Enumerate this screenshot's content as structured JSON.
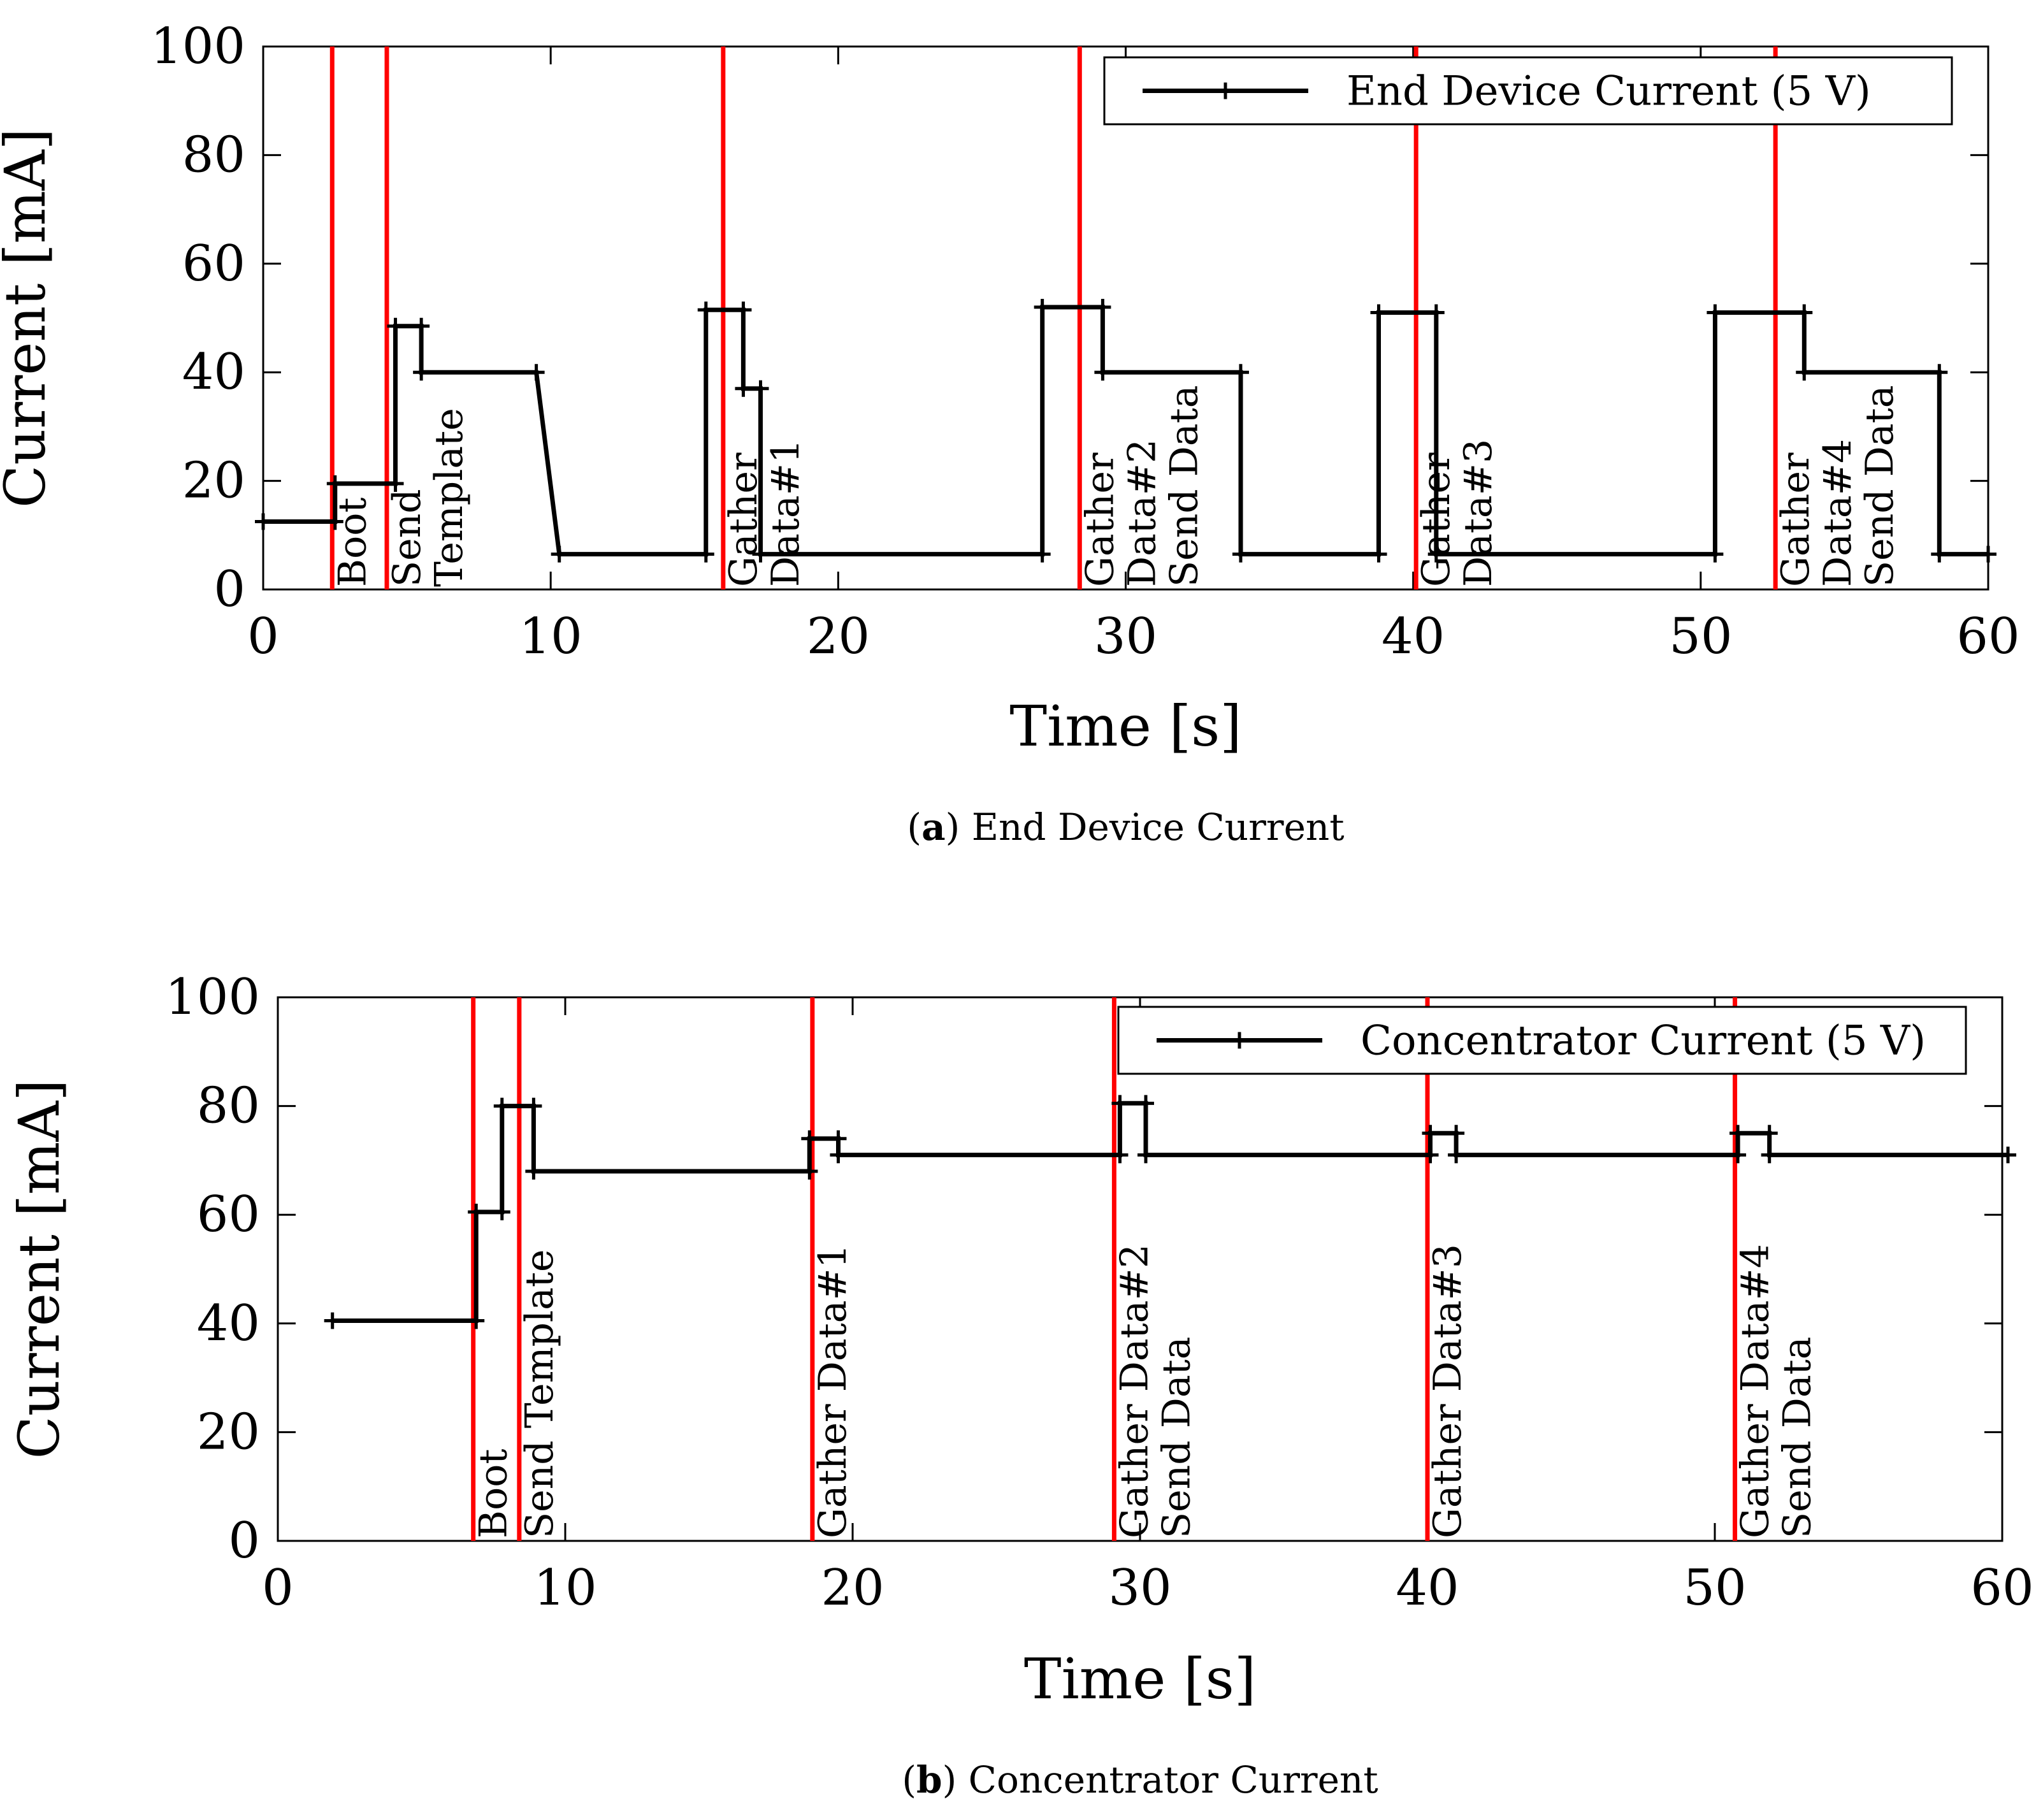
{
  "chart_data": [
    {
      "type": "line",
      "caption_letter": "a",
      "caption_text": "End Device Current",
      "xlabel": "Time [s]",
      "ylabel": "Current [mA]",
      "xlim": [
        0,
        60
      ],
      "ylim": [
        0,
        100
      ],
      "xticks": [
        "0",
        "10",
        "20",
        "30",
        "40",
        "50",
        "60"
      ],
      "yticks": [
        "0",
        "20",
        "40",
        "60",
        "80",
        "100"
      ],
      "legend_position": "top-right",
      "series": [
        {
          "name": "End Device Current (5 V)",
          "color": "#000000",
          "points": [
            [
              0,
              12.5
            ],
            [
              2.5,
              12.5
            ],
            [
              2.5,
              19.5
            ],
            [
              4.6,
              19.5
            ],
            [
              4.6,
              48.5
            ],
            [
              5.5,
              48.5
            ],
            [
              5.5,
              40
            ],
            [
              9.5,
              40
            ],
            [
              10.3,
              6.5
            ],
            [
              15.4,
              6.5
            ],
            [
              15.4,
              51.5
            ],
            [
              16.7,
              51.5
            ],
            [
              16.7,
              37
            ],
            [
              17.3,
              37
            ],
            [
              17.3,
              6.5
            ],
            [
              27.1,
              6.5
            ],
            [
              27.1,
              52
            ],
            [
              29.2,
              52
            ],
            [
              29.2,
              40
            ],
            [
              34,
              40
            ],
            [
              34,
              6.5
            ],
            [
              38.8,
              6.5
            ],
            [
              38.8,
              51
            ],
            [
              40.8,
              51
            ],
            [
              40.8,
              6.5
            ],
            [
              50.5,
              6.5
            ],
            [
              50.5,
              51
            ],
            [
              53.6,
              51
            ],
            [
              53.6,
              40
            ],
            [
              58.3,
              40
            ],
            [
              58.3,
              6.5
            ],
            [
              60,
              6.5
            ]
          ],
          "markers": [
            [
              0,
              12.5
            ],
            [
              2.5,
              12.5
            ],
            [
              2.5,
              19.5
            ],
            [
              4.6,
              19.5
            ],
            [
              4.6,
              48.5
            ],
            [
              5.5,
              48.5
            ],
            [
              5.5,
              40
            ],
            [
              9.5,
              40
            ],
            [
              10.3,
              6.5
            ],
            [
              15.4,
              6.5
            ],
            [
              15.4,
              51.5
            ],
            [
              16.7,
              51.5
            ],
            [
              16.7,
              37
            ],
            [
              17.3,
              37
            ],
            [
              17.3,
              6.5
            ],
            [
              27.1,
              6.5
            ],
            [
              27.1,
              52
            ],
            [
              29.2,
              52
            ],
            [
              29.2,
              40
            ],
            [
              34,
              40
            ],
            [
              34,
              6.5
            ],
            [
              38.8,
              6.5
            ],
            [
              38.8,
              51
            ],
            [
              40.8,
              51
            ],
            [
              40.8,
              6.5
            ],
            [
              50.5,
              6.5
            ],
            [
              50.5,
              51
            ],
            [
              53.6,
              51
            ],
            [
              53.6,
              40
            ],
            [
              58.3,
              40
            ],
            [
              58.3,
              6.5
            ],
            [
              60,
              6.5
            ]
          ]
        }
      ],
      "event_lines": [
        {
          "x": 2.4,
          "color": "#ff0000",
          "label_top_y": 20,
          "labels": [
            "Boot"
          ]
        },
        {
          "x": 4.3,
          "color": "#ff0000",
          "label_top_y": 40,
          "labels": [
            "Send",
            "Template"
          ]
        },
        {
          "x": 16.0,
          "color": "#ff0000",
          "label_top_y": 72,
          "labels": [
            "Gather",
            "Data#1"
          ]
        },
        {
          "x": 28.4,
          "color": "#ff0000",
          "label_top_y": 27,
          "labels": [
            "Gather",
            "Data#2",
            "Send Data"
          ]
        },
        {
          "x": 40.1,
          "color": "#ff0000",
          "label_top_y": 46,
          "labels": [
            "Gather",
            "Data#3"
          ]
        },
        {
          "x": 52.6,
          "color": "#ff0000",
          "label_top_y": 27,
          "labels": [
            "Gather",
            "Data#4",
            "Send Data"
          ]
        }
      ]
    },
    {
      "type": "line",
      "caption_letter": "b",
      "caption_text": "Concentrator Current",
      "xlabel": "Time [s]",
      "ylabel": "Current [mA]",
      "xlim": [
        0,
        60
      ],
      "ylim": [
        0,
        100
      ],
      "xticks": [
        "0",
        "10",
        "20",
        "30",
        "40",
        "50",
        "60"
      ],
      "yticks": [
        "0",
        "20",
        "40",
        "60",
        "80",
        "100"
      ],
      "legend_position": "top-right",
      "series": [
        {
          "name": "Concentrator Current (5 V)",
          "color": "#000000",
          "points": [
            [
              1.9,
              40.5
            ],
            [
              6.9,
              40.5
            ],
            [
              6.9,
              60.5
            ],
            [
              7.8,
              60.5
            ],
            [
              7.8,
              80
            ],
            [
              8.9,
              80
            ],
            [
              8.9,
              68
            ],
            [
              18.5,
              68
            ],
            [
              18.5,
              74
            ],
            [
              19.5,
              74
            ],
            [
              19.5,
              71
            ],
            [
              29.3,
              71
            ],
            [
              29.3,
              80.5
            ],
            [
              30.2,
              80.5
            ],
            [
              30.2,
              71
            ],
            [
              40.1,
              71
            ],
            [
              40.1,
              75
            ],
            [
              41.0,
              75
            ],
            [
              41.0,
              71
            ],
            [
              50.8,
              71
            ],
            [
              50.8,
              75
            ],
            [
              51.9,
              75
            ],
            [
              51.9,
              71
            ],
            [
              60.2,
              71
            ]
          ],
          "markers": [
            [
              1.9,
              40.5
            ],
            [
              6.9,
              40.5
            ],
            [
              6.9,
              60.5
            ],
            [
              7.8,
              60.5
            ],
            [
              7.8,
              80
            ],
            [
              8.9,
              80
            ],
            [
              8.9,
              68
            ],
            [
              18.5,
              68
            ],
            [
              18.5,
              74
            ],
            [
              19.5,
              74
            ],
            [
              19.5,
              71
            ],
            [
              29.3,
              71
            ],
            [
              29.3,
              80.5
            ],
            [
              30.2,
              80.5
            ],
            [
              30.2,
              71
            ],
            [
              40.1,
              71
            ],
            [
              40.1,
              75
            ],
            [
              41.0,
              75
            ],
            [
              41.0,
              71
            ],
            [
              50.8,
              71
            ],
            [
              50.8,
              75
            ],
            [
              51.9,
              75
            ],
            [
              51.9,
              71
            ],
            [
              60.2,
              71
            ]
          ]
        }
      ],
      "event_lines": [
        {
          "x": 6.8,
          "color": "#ff0000",
          "label_top_y": 19,
          "labels": [
            "Boot"
          ]
        },
        {
          "x": 8.4,
          "color": "#ff0000",
          "label_top_y": 60,
          "labels": [
            "Send Template"
          ]
        },
        {
          "x": 18.6,
          "color": "#ff0000",
          "label_top_y": 60,
          "labels": [
            "Gather Data#1"
          ]
        },
        {
          "x": 29.1,
          "color": "#ff0000",
          "label_top_y": 60,
          "labels": [
            "Gather Data#2",
            "Send Data"
          ]
        },
        {
          "x": 40.0,
          "color": "#ff0000",
          "label_top_y": 60,
          "labels": [
            "Gather Data#3"
          ]
        },
        {
          "x": 50.7,
          "color": "#ff0000",
          "label_top_y": 60,
          "labels": [
            "Gather Data#4",
            "Send Data"
          ]
        }
      ]
    }
  ]
}
